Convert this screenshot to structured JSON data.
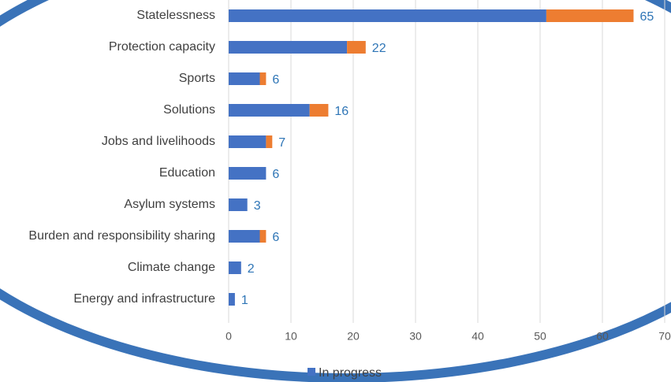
{
  "chart_data": {
    "type": "stacked_barh",
    "categories": [
      "Statelessness",
      "Protection capacity",
      "Sports",
      "Solutions",
      "Jobs and livelihoods",
      "Education",
      "Asylum systems",
      "Burden and responsibility sharing",
      "Climate change",
      "Energy and infrastructure"
    ],
    "series": [
      {
        "name": "In progress",
        "color": "#4472c4",
        "values": [
          51,
          19,
          5,
          13,
          6,
          6,
          3,
          5,
          2,
          1
        ]
      },
      {
        "color": "#ed7d31",
        "values": [
          14,
          3,
          1,
          3,
          1,
          0,
          0,
          1,
          0,
          0
        ]
      }
    ],
    "totals": [
      65,
      22,
      6,
      16,
      7,
      6,
      3,
      6,
      2,
      1
    ],
    "label_color": "#2e75b6",
    "xlim": [
      0,
      70
    ],
    "xticks": [
      0,
      10,
      20,
      30,
      40,
      50,
      60,
      70
    ],
    "grid": true
  }
}
